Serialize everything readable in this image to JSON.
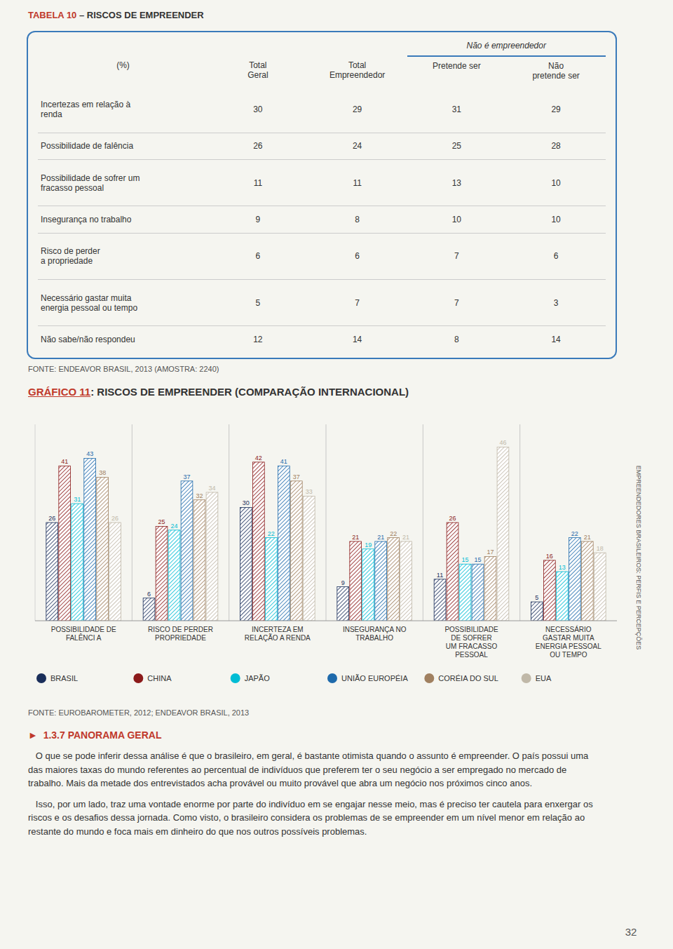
{
  "chart_data": [
    {
      "type": "table",
      "title": "TABELA 10",
      "subtitle": " – RISCOS DE EMPREENDER",
      "categories": [
        "Incertezas em relação à\nrenda",
        "Possibilidade de falência",
        "Possibilidade de sofrer um\nfracasso pessoal",
        "Insegurança no trabalho",
        "Risco de perder\na propriedade",
        "Necessário gastar muita\nenergia pessoal ou tempo",
        "Não sabe/não respondeu"
      ],
      "series": [
        {
          "name": "Total\nGeral",
          "values": [
            30,
            26,
            11,
            9,
            6,
            5,
            12
          ]
        },
        {
          "name": "Total\nEmpreendedor",
          "values": [
            29,
            24,
            11,
            8,
            6,
            7,
            14
          ]
        },
        {
          "name": "Pretende ser",
          "values": [
            31,
            25,
            13,
            10,
            7,
            7,
            8
          ]
        },
        {
          "name": "Não\npretende ser",
          "values": [
            29,
            28,
            10,
            10,
            6,
            3,
            14
          ]
        }
      ],
      "annotations": [
        "(%)",
        "Não é empreendedor",
        "FONTE: ENDEAVOR BRASIL, 2013 (AMOSTRA: 2240)"
      ]
    },
    {
      "type": "bar",
      "title": "GRÁFICO 11",
      "subtitle": ": RISCOS DE EMPREENDER (COMPARAÇÃO INTERNACIONAL)",
      "categories": [
        "POSSIBILIDADE DE\nFALÊNCI A",
        "RISCO DE PERDER\nPROPRIEDADE",
        "INCERTEZA EM\nRELAÇÃO A RENDA",
        "INSEGURANÇA NO\nTRABALHO",
        "POSSIBILIDADE\nDE SOFRER\nUM FRACASSO\nPESSOAL",
        "NECESSÁRIO\nGASTAR MUITA\nENERGIA PESSOAL\nOU TEMPO"
      ],
      "series": [
        {
          "name": "BRASIL",
          "color": "#1a2e5a",
          "values": [
            26,
            6,
            30,
            9,
            11,
            5
          ]
        },
        {
          "name": "CHINA",
          "color": "#8b1a1a",
          "values": [
            41,
            25,
            42,
            21,
            26,
            16
          ]
        },
        {
          "name": "JAPÃO",
          "color": "#00bcd4",
          "values": [
            31,
            24,
            22,
            19,
            15,
            13
          ]
        },
        {
          "name": "UNIÃO EUROPÉIA",
          "color": "#1e6aab",
          "values": [
            43,
            37,
            41,
            21,
            15,
            22
          ]
        },
        {
          "name": "CORÉIA DO SUL",
          "color": "#a08060",
          "values": [
            38,
            32,
            37,
            22,
            17,
            21
          ]
        },
        {
          "name": "EUA",
          "color": "#c0b8a8",
          "values": [
            26,
            34,
            33,
            21,
            46,
            18
          ]
        }
      ],
      "ylim": [
        0,
        52
      ],
      "data_labels": true,
      "legend": "bottom",
      "tick_labels": "x",
      "grid": false,
      "annotations": [
        "FONTE: EUROBAROMETER, 2012; ENDEAVOR BRASIL, 2013",
        "►  1.3.7 PANORAMA GERAL",
        "   O que se pode inferir dessa análise é que o brasileiro, em geral, é bastante otimista quando o assunto é empreender. O país possui uma das maiores taxas do mundo referentes ao percentual de indivíduos que preferem ter o seu negócio a ser empregado no mercado de trabalho. Mais da metade dos entrevistados acha provável ou muito provável que abra um negócio nos próximos cinco anos.",
        "   Isso, por um lado, traz uma vontade enorme por parte do indivíduo em se engajar nesse meio, mas é preciso ter cautela para enxergar os riscos e os desafios dessa jornada. Como visto, o brasileiro considera os problemas de se empreender em um nível menor em relação ao restante do mundo e foca mais em dinheiro do que nos outros possíveis problemas.",
        "EMPREENDEDORES BRASILEIROS: PERFIS E PERCEPÇÕES",
        "32"
      ]
    }
  ]
}
